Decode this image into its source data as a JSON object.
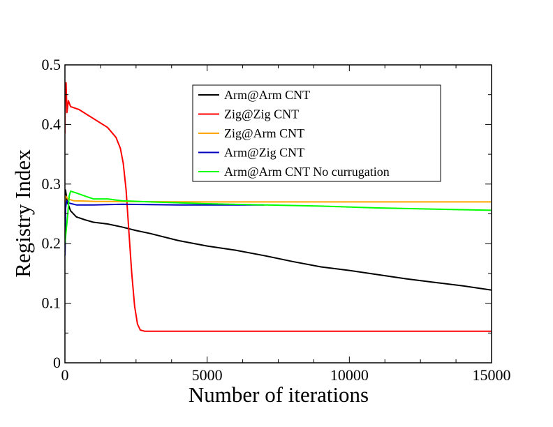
{
  "chart_data": {
    "type": "line",
    "xlabel": "Number of iterations",
    "ylabel": "Registry Index",
    "xlim": [
      0,
      15000
    ],
    "ylim": [
      0,
      0.5
    ],
    "x_ticks": [
      0,
      5000,
      10000,
      15000
    ],
    "x_tick_labels": [
      "0",
      "5000",
      "10000",
      "15000"
    ],
    "y_ticks": [
      0,
      0.1,
      0.2,
      0.3,
      0.4,
      0.5
    ],
    "y_tick_labels": [
      "0",
      "0.1",
      "0.2",
      "0.3",
      "0.4",
      "0.5"
    ],
    "grid": false,
    "legend_position": "top-right",
    "series": [
      {
        "name": "Arm@Arm CNT",
        "color": "#000000",
        "points": [
          [
            0,
            0.18
          ],
          [
            20,
            0.29
          ],
          [
            80,
            0.27
          ],
          [
            200,
            0.255
          ],
          [
            400,
            0.245
          ],
          [
            700,
            0.24
          ],
          [
            1000,
            0.236
          ],
          [
            1500,
            0.233
          ],
          [
            2000,
            0.228
          ],
          [
            2500,
            0.222
          ],
          [
            3000,
            0.217
          ],
          [
            4000,
            0.205
          ],
          [
            5000,
            0.196
          ],
          [
            6000,
            0.189
          ],
          [
            7000,
            0.18
          ],
          [
            8000,
            0.17
          ],
          [
            9000,
            0.161
          ],
          [
            10000,
            0.155
          ],
          [
            11000,
            0.148
          ],
          [
            12000,
            0.141
          ],
          [
            13000,
            0.135
          ],
          [
            14000,
            0.129
          ],
          [
            15000,
            0.122
          ]
        ]
      },
      {
        "name": "Zig@Zig CNT",
        "color": "#ff0000",
        "points": [
          [
            0,
            0.385
          ],
          [
            10,
            0.46
          ],
          [
            40,
            0.47
          ],
          [
            70,
            0.42
          ],
          [
            120,
            0.44
          ],
          [
            200,
            0.43
          ],
          [
            500,
            0.425
          ],
          [
            1000,
            0.41
          ],
          [
            1500,
            0.395
          ],
          [
            1800,
            0.378
          ],
          [
            1950,
            0.36
          ],
          [
            2050,
            0.335
          ],
          [
            2150,
            0.29
          ],
          [
            2250,
            0.22
          ],
          [
            2350,
            0.15
          ],
          [
            2450,
            0.095
          ],
          [
            2550,
            0.065
          ],
          [
            2650,
            0.055
          ],
          [
            2800,
            0.053
          ],
          [
            5000,
            0.053
          ],
          [
            10000,
            0.053
          ],
          [
            15000,
            0.053
          ]
        ]
      },
      {
        "name": "Zig@Arm CNT",
        "color": "#ffa500",
        "points": [
          [
            0,
            0.265
          ],
          [
            30,
            0.28
          ],
          [
            100,
            0.275
          ],
          [
            300,
            0.272
          ],
          [
            1000,
            0.271
          ],
          [
            5000,
            0.27
          ],
          [
            10000,
            0.27
          ],
          [
            15000,
            0.27
          ]
        ]
      },
      {
        "name": "Arm@Zig CNT",
        "color": "#0000bf",
        "points": [
          [
            0,
            0.18
          ],
          [
            25,
            0.26
          ],
          [
            60,
            0.272
          ],
          [
            150,
            0.268
          ],
          [
            400,
            0.265
          ],
          [
            1000,
            0.265
          ],
          [
            2000,
            0.266
          ],
          [
            4000,
            0.265
          ],
          [
            6000,
            0.265
          ],
          [
            7000,
            0.265
          ]
        ]
      },
      {
        "name": "Arm@Arm CNT No currugation",
        "color": "#00ff00",
        "points": [
          [
            0,
            0.2
          ],
          [
            50,
            0.225
          ],
          [
            100,
            0.25
          ],
          [
            150,
            0.28
          ],
          [
            200,
            0.288
          ],
          [
            400,
            0.285
          ],
          [
            700,
            0.28
          ],
          [
            1000,
            0.275
          ],
          [
            1500,
            0.275
          ],
          [
            2000,
            0.272
          ],
          [
            3000,
            0.27
          ],
          [
            5000,
            0.267
          ],
          [
            7000,
            0.265
          ],
          [
            9000,
            0.263
          ],
          [
            11000,
            0.26
          ],
          [
            13000,
            0.258
          ],
          [
            15000,
            0.256
          ]
        ]
      }
    ]
  }
}
